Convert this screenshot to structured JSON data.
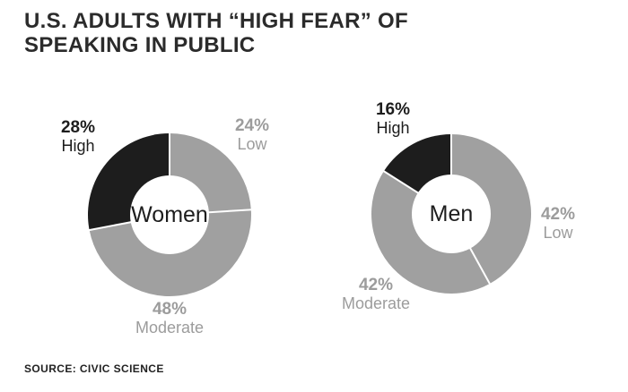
{
  "title": {
    "line1": "U.S. ADULTS WITH “HIGH FEAR” OF",
    "line2": "SPEAKING IN PUBLIC"
  },
  "source": "SOURCE: CIVIC SCIENCE",
  "colors": {
    "high_segment": "#1d1d1d",
    "gray_segment": "#a0a0a0",
    "gray_label_text": "#9c9c9c",
    "dark_label_text": "#1d1d1d",
    "title_text": "#2b2b2b",
    "background": "#ffffff"
  },
  "chart_data": [
    {
      "type": "pie",
      "donut": true,
      "group_label": "Women",
      "start_angle_deg": 0,
      "direction": "clockwise",
      "legend_position": "around-slices",
      "segments": [
        {
          "label": "Low",
          "value": 24,
          "value_label": "24%",
          "color": "#a0a0a0"
        },
        {
          "label": "Moderate",
          "value": 48,
          "value_label": "48%",
          "color": "#a0a0a0"
        },
        {
          "label": "High",
          "value": 28,
          "value_label": "28%",
          "color": "#1d1d1d"
        }
      ]
    },
    {
      "type": "pie",
      "donut": true,
      "group_label": "Men",
      "start_angle_deg": 0,
      "direction": "clockwise",
      "legend_position": "around-slices",
      "segments": [
        {
          "label": "Low",
          "value": 42,
          "value_label": "42%",
          "color": "#a0a0a0"
        },
        {
          "label": "Moderate",
          "value": 42,
          "value_label": "42%",
          "color": "#a0a0a0"
        },
        {
          "label": "High",
          "value": 16,
          "value_label": "16%",
          "color": "#1d1d1d"
        }
      ]
    }
  ]
}
